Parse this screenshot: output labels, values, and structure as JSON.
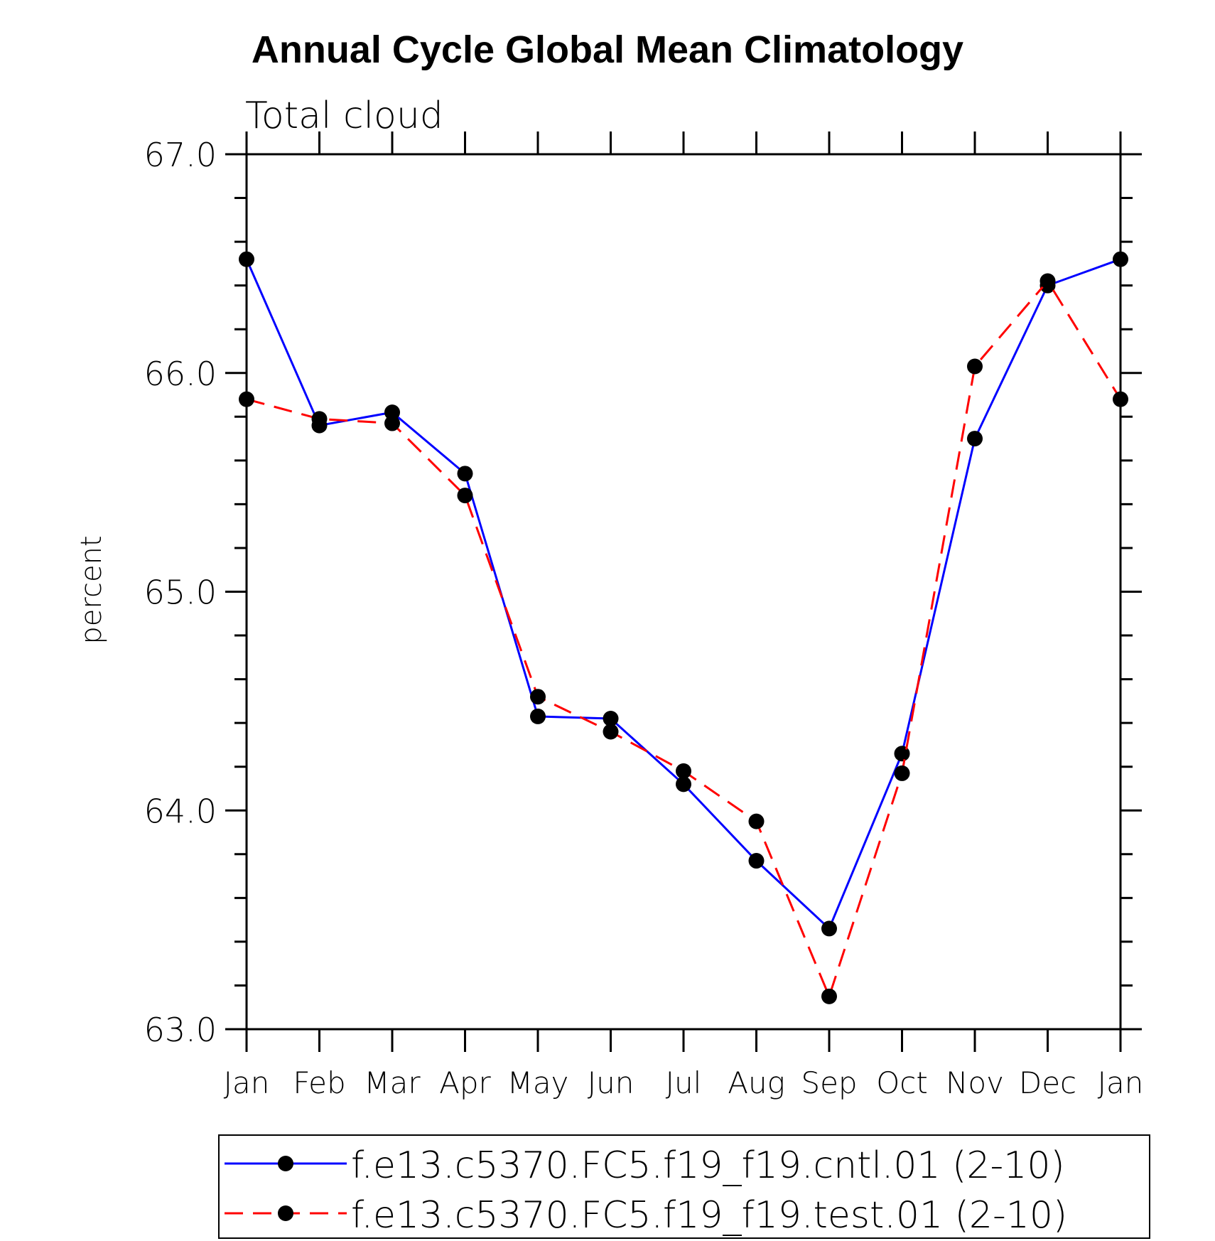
{
  "chart_data": {
    "type": "line",
    "title": "Annual Cycle Global Mean Climatology",
    "subtitle": "Total cloud",
    "xlabel": "",
    "ylabel": "percent",
    "ylim": [
      63.0,
      67.0
    ],
    "y_ticks": [
      "63.0",
      "64.0",
      "65.0",
      "66.0",
      "67.0"
    ],
    "y_tick_values": [
      63.0,
      64.0,
      65.0,
      66.0,
      67.0
    ],
    "y_minor_step": 0.2,
    "categories": [
      "Jan",
      "Feb",
      "Mar",
      "Apr",
      "May",
      "Jun",
      "Jul",
      "Aug",
      "Sep",
      "Oct",
      "Nov",
      "Dec",
      "Jan"
    ],
    "grid": false,
    "legend_position": "bottom",
    "series": [
      {
        "name": "f.e13.c5370.FC5.f19_f19.cntl.01 (2-10)",
        "color": "#0000ff",
        "line_style": "solid",
        "marker_color": "#000000",
        "values": [
          66.52,
          65.76,
          65.82,
          65.54,
          64.43,
          64.42,
          64.12,
          63.77,
          63.46,
          64.26,
          65.7,
          66.4,
          66.52
        ]
      },
      {
        "name": "f.e13.c5370.FC5.f19_f19.test.01 (2-10)",
        "color": "#ff0000",
        "line_style": "dashed",
        "marker_color": "#000000",
        "values": [
          65.88,
          65.79,
          65.77,
          65.44,
          64.52,
          64.36,
          64.18,
          63.95,
          63.15,
          64.17,
          66.03,
          66.42,
          65.88
        ]
      }
    ]
  }
}
